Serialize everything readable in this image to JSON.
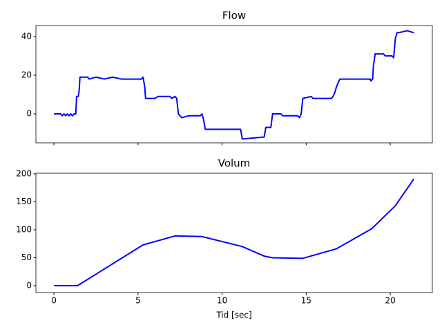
{
  "chart_data": [
    {
      "type": "line",
      "title": "Flow",
      "x": [
        0,
        0.4,
        0.5,
        0.6,
        0.7,
        0.8,
        0.9,
        1.0,
        1.1,
        1.2,
        1.3,
        1.35,
        1.45,
        1.5,
        1.55,
        2.0,
        2.1,
        2.5,
        3.0,
        3.5,
        4.0,
        5.2,
        5.3,
        5.4,
        5.45,
        6.0,
        6.2,
        6.9,
        7.0,
        7.2,
        7.3,
        7.4,
        7.5,
        7.6,
        8.0,
        8.7,
        8.8,
        8.9,
        9.0,
        11.1,
        11.2,
        12.5,
        12.6,
        12.9,
        13.0,
        13.5,
        13.6,
        14.5,
        14.6,
        14.7,
        14.8,
        15.3,
        15.4,
        16.5,
        16.6,
        16.7,
        16.8,
        17.0,
        18.8,
        18.85,
        18.95,
        19.0,
        19.1,
        19.6,
        19.7,
        20.1,
        20.2,
        20.3,
        20.4,
        20.5,
        21.0,
        21.4
      ],
      "series": [
        {
          "name": "Flow",
          "color": "#0000ff",
          "values": [
            0,
            0,
            -1,
            0,
            -1,
            0,
            -1,
            0,
            -1,
            0,
            0,
            9,
            9,
            12,
            19,
            19,
            18,
            19,
            18,
            19,
            18,
            18,
            19,
            14,
            8,
            8,
            9,
            9,
            8,
            9,
            8,
            0,
            -1,
            -2,
            -1,
            -1,
            0,
            -3,
            -8,
            -8,
            -13,
            -12,
            -7,
            -7,
            0,
            0,
            -1,
            -1,
            -2,
            0,
            8,
            9,
            8,
            8,
            9,
            11,
            14,
            18,
            18,
            17,
            18,
            25,
            31,
            31,
            30,
            30,
            29,
            39,
            42,
            42,
            43,
            42
          ]
        }
      ],
      "xlim": [
        -1.07,
        22.5
      ],
      "xticks": [
        0,
        5,
        10,
        15,
        20
      ],
      "ylim": [
        -15,
        45.7
      ],
      "yticks": [
        0,
        20,
        40
      ]
    },
    {
      "type": "line",
      "title": "Volum",
      "x_label": "Tid [sec]",
      "x": [
        0,
        1.4,
        5.3,
        7.2,
        8.8,
        11.2,
        12.5,
        13.0,
        14.8,
        16.8,
        18.9,
        20.3,
        21.4
      ],
      "series": [
        {
          "name": "Volum",
          "color": "#0000ff",
          "values": [
            0,
            0,
            73,
            89,
            88,
            70,
            53,
            50,
            49,
            66,
            102,
            143,
            191
          ]
        }
      ],
      "xlim": [
        -1.07,
        22.5
      ],
      "xticks": [
        0,
        5,
        10,
        15,
        20
      ],
      "ylim": [
        -12.3,
        201.2
      ],
      "yticks": [
        0,
        50,
        100,
        150,
        200
      ]
    }
  ]
}
